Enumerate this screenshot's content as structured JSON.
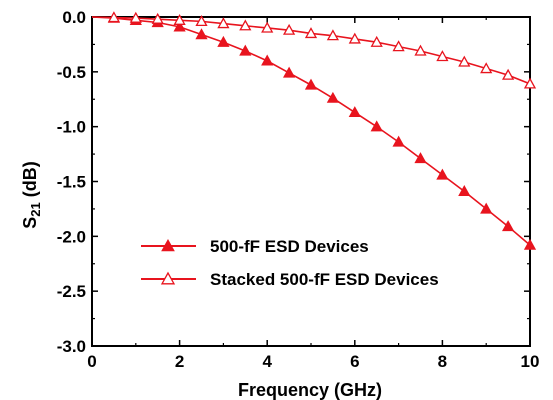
{
  "chart_data": {
    "type": "line",
    "title": "",
    "xlabel": "Frequency (GHz)",
    "ylabel": "S21 (dB)",
    "ylabel_main": "S",
    "ylabel_sub": "21",
    "ylabel_rest": " (dB)",
    "xlim": [
      0,
      10
    ],
    "ylim": [
      -3.0,
      0.0
    ],
    "x_ticks": [
      0,
      2,
      4,
      6,
      8,
      10
    ],
    "x_tick_labels": [
      "0",
      "2",
      "4",
      "6",
      "8",
      "10"
    ],
    "y_ticks": [
      0.0,
      -0.5,
      -1.0,
      -1.5,
      -2.0,
      -2.5,
      -3.0
    ],
    "y_tick_labels": [
      "0.0",
      "-0.5",
      "-1.0",
      "-1.5",
      "-2.0",
      "-2.5",
      "-3.0"
    ],
    "grid": false,
    "legend_position": "lower-left",
    "x": [
      0,
      0.5,
      1.0,
      1.5,
      2.0,
      2.5,
      3.0,
      3.5,
      4.0,
      4.5,
      5.0,
      5.5,
      6.0,
      6.5,
      7.0,
      7.5,
      8.0,
      8.5,
      9.0,
      9.5,
      10.0
    ],
    "series": [
      {
        "name": "500-fF ESD Devices",
        "marker": "filled-triangle",
        "color": "#e8141e",
        "values": [
          0.0,
          -0.01,
          -0.03,
          -0.05,
          -0.09,
          -0.16,
          -0.23,
          -0.31,
          -0.4,
          -0.51,
          -0.62,
          -0.74,
          -0.87,
          -1.0,
          -1.14,
          -1.29,
          -1.44,
          -1.59,
          -1.75,
          -1.91,
          -2.08
        ]
      },
      {
        "name": "Stacked 500-fF ESD Devices",
        "marker": "open-triangle",
        "color": "#e8141e",
        "values": [
          0.0,
          -0.005,
          -0.01,
          -0.02,
          -0.03,
          -0.04,
          -0.06,
          -0.08,
          -0.1,
          -0.12,
          -0.15,
          -0.17,
          -0.2,
          -0.23,
          -0.27,
          -0.31,
          -0.36,
          -0.41,
          -0.47,
          -0.53,
          -0.61
        ]
      }
    ]
  }
}
